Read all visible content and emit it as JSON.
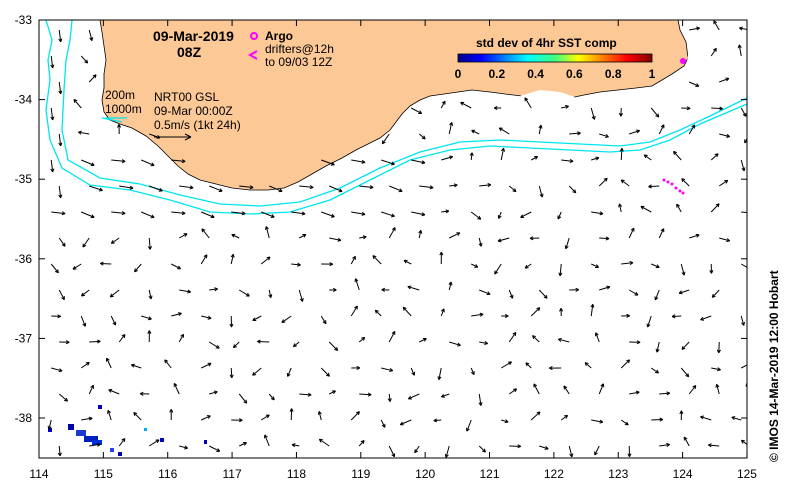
{
  "title": {
    "date": "09-Mar-2019",
    "time": "08Z"
  },
  "legend_argo": {
    "label": "Argo",
    "drifters_line1": "drifters@12h",
    "drifters_line2": "to 09/03 12Z",
    "color": "#ff00ff"
  },
  "colorbar": {
    "title": "std dev of 4hr SST comp",
    "ticks": [
      "0",
      "0.2",
      "0.4",
      "0.6",
      "0.8",
      "1"
    ]
  },
  "contours": {
    "label_200m": "200m",
    "label_1000m": "1000m",
    "color": "#00e5ee"
  },
  "model": {
    "name": "NRT00 GSL",
    "valid": "09-Mar 00:00Z",
    "scale_label": "0.5m/s (1kt 24h)"
  },
  "credit": "© IMOS 14-Mar-2019 12:00 Hobart",
  "colors": {
    "land": "#fcc896",
    "ocean": "#ffffff"
  },
  "axes": {
    "x_ticks": [
      "114",
      "115",
      "116",
      "117",
      "118",
      "119",
      "120",
      "121",
      "122",
      "123",
      "124",
      "125"
    ],
    "y_ticks": [
      "-33",
      "-34",
      "-35",
      "-36",
      "-37",
      "-38"
    ]
  }
}
